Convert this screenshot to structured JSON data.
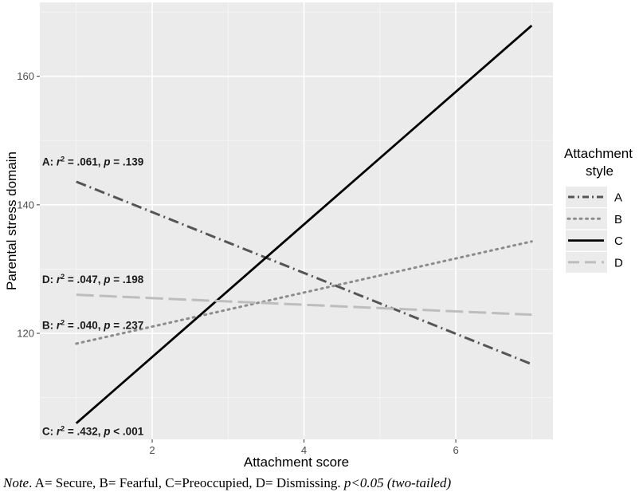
{
  "chart_data": {
    "type": "line",
    "xlabel": "Attachment score",
    "ylabel": "Parental stress domain",
    "xlim": [
      0.52,
      7.28
    ],
    "ylim": [
      103.5,
      171.5
    ],
    "x_ticks": [
      2,
      4,
      6
    ],
    "y_ticks": [
      120,
      140,
      160
    ],
    "grid": true,
    "legend": {
      "title_line1": "Attachment",
      "title_line2": "style",
      "position": "right"
    },
    "series": [
      {
        "name": "A",
        "style": "dashdot",
        "color": "#555555",
        "x": [
          1,
          7
        ],
        "y": [
          143.6,
          115.2
        ]
      },
      {
        "name": "B",
        "style": "dotted",
        "color": "#8c8c8c",
        "x": [
          1,
          7
        ],
        "y": [
          118.4,
          134.3
        ]
      },
      {
        "name": "C",
        "style": "solid",
        "color": "#000000",
        "x": [
          1,
          7
        ],
        "y": [
          106.0,
          167.9
        ]
      },
      {
        "name": "D",
        "style": "longdash",
        "color": "#bdbdbd",
        "x": [
          1,
          7
        ],
        "y": [
          126.0,
          122.9
        ]
      }
    ],
    "annotations": [
      {
        "label": "A:",
        "r_sym": "r",
        "sup": "2",
        "r_val": " = .061, ",
        "p_sym": "p",
        "p_val": " = .139",
        "x": 0.55,
        "y": 146.1
      },
      {
        "label": "D:",
        "r_sym": "r",
        "sup": "2",
        "r_val": " = .047, ",
        "p_sym": "p",
        "p_val": " = .198",
        "x": 0.55,
        "y": 127.8
      },
      {
        "label": "B:",
        "r_sym": "r",
        "sup": "2",
        "r_val": " = .040, ",
        "p_sym": "p",
        "p_val": " = .237",
        "x": 0.55,
        "y": 120.7
      },
      {
        "label": "C:",
        "r_sym": "r",
        "sup": "2",
        "r_val": " = .432, ",
        "p_sym": "p",
        "p_val": " < .001",
        "x": 0.55,
        "y": 104.2
      }
    ]
  },
  "note": {
    "prefix": "Note",
    "body": ". A= Secure, B= Fearful, C=Preoccupied, D= Dismissing. ",
    "p_text": "p<0.05 (two-tailed)"
  }
}
